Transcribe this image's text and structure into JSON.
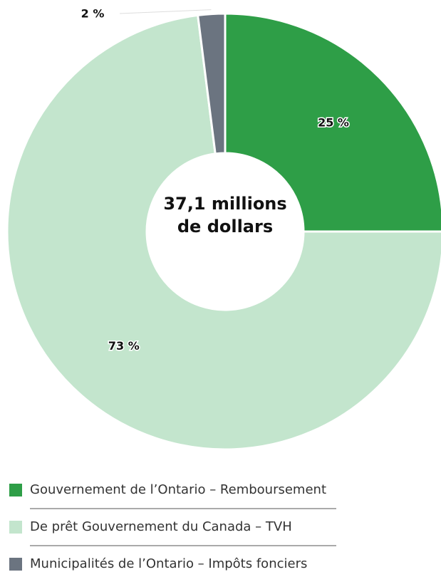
{
  "chart_data": {
    "type": "pie",
    "donut": true,
    "categories": [
      "Gouvernement de l’Ontario – Remboursement",
      "De prêt Gouvernement du Canada – TVH",
      "Municipalités de l’Ontario – Impôts fonciers"
    ],
    "values": [
      25,
      73,
      2
    ],
    "value_labels": [
      "25 %",
      "73 %",
      "2 %"
    ],
    "colors": [
      "#2e9e47",
      "#c3e5cd",
      "#6b7480"
    ],
    "center_label": "37,1 millions de dollars"
  }
}
